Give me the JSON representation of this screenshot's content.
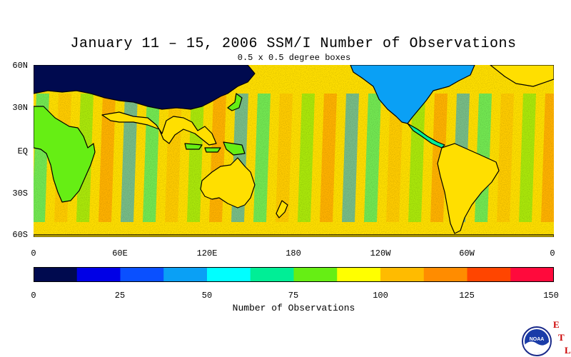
{
  "header": {
    "title": "January 11 – 15, 2006 SSM/I Number of Observations",
    "subtitle": "0.5 x 0.5 degree boxes"
  },
  "map": {
    "lat_labels": [
      "60N",
      "30N",
      "EQ",
      "30S",
      "60S"
    ],
    "lon_labels": [
      "0",
      "60E",
      "120E",
      "180",
      "120W",
      "60W",
      "0"
    ],
    "land_color": "#ffffff",
    "coast_color": "#000000"
  },
  "colorbar": {
    "title": "Number of Observations",
    "tick_labels": [
      "0",
      "25",
      "50",
      "75",
      "100",
      "125",
      "150"
    ],
    "colors": [
      "#000a4f",
      "#0000e6",
      "#0a50ff",
      "#0aa0f5",
      "#00ffff",
      "#00ee96",
      "#66ee14",
      "#ffff00",
      "#ffbb00",
      "#ff8c00",
      "#ff4500",
      "#ff0a3c"
    ]
  },
  "logo": {
    "text": "NOAA",
    "letters": [
      "E",
      "T",
      "L"
    ]
  }
}
